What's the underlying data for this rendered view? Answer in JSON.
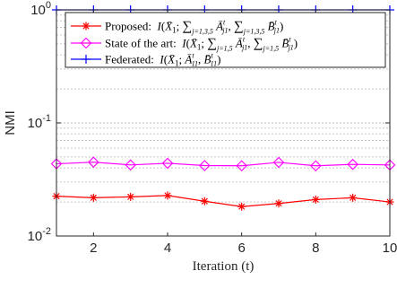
{
  "chart_data": {
    "type": "line",
    "xlabel": "Iteration (t)",
    "ylabel": "NMI",
    "yscale": "log",
    "xlim": [
      1,
      10
    ],
    "ylim": [
      0.01,
      1
    ],
    "x": [
      1,
      2,
      3,
      4,
      5,
      6,
      7,
      8,
      9,
      10
    ],
    "xticks": [
      "2",
      "4",
      "6",
      "8",
      "10"
    ],
    "yticks": [
      {
        "base": "10",
        "exp": "-2"
      },
      {
        "base": "10",
        "exp": "-1"
      },
      {
        "base": "10",
        "exp": "0"
      }
    ],
    "grid": true,
    "legend_position": "top-right",
    "series": [
      {
        "name": "Proposed: I(X̄1; ∑j=1,3,5 Ā^t_j1, ∑j=1,3,5 B̄^t_j1)",
        "legend": {
          "prefix": "Proposed:",
          "set": "j=1,3,5"
        },
        "color": "#ff0000",
        "marker": "asterisk",
        "values": [
          0.0225,
          0.0218,
          0.0222,
          0.0228,
          0.0203,
          0.0182,
          0.0194,
          0.021,
          0.0218,
          0.02
        ]
      },
      {
        "name": "State of the art: I(X̄1; ∑j=1,5 Ā^t_j1, ∑j=1,5 B̄^t_j1)",
        "legend": {
          "prefix": "State of the art:",
          "set": "j=1,5"
        },
        "color": "#ff00ff",
        "marker": "diamond",
        "values": [
          0.0435,
          0.045,
          0.0425,
          0.044,
          0.042,
          0.0418,
          0.0448,
          0.0418,
          0.043,
          0.0425
        ]
      },
      {
        "name": "Federated: I(X̄1; Ā^t_11, B̄^t_11)",
        "legend": {
          "prefix": "Federated:"
        },
        "color": "#0000ff",
        "marker": "plus",
        "values": [
          1,
          1,
          1,
          1,
          1,
          1,
          1,
          1,
          1,
          1
        ]
      }
    ]
  }
}
